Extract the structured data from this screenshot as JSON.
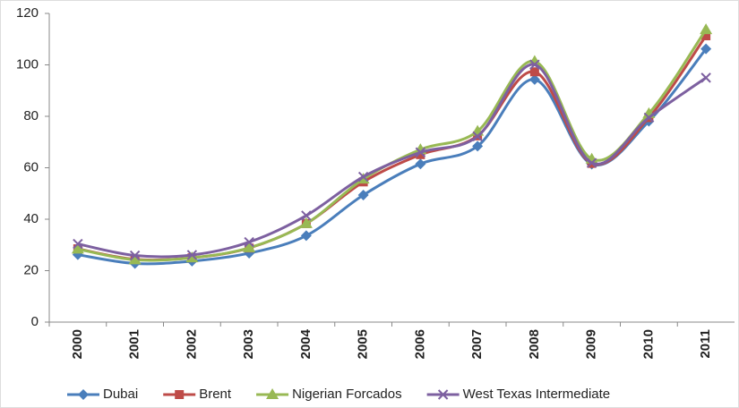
{
  "chart_data": {
    "type": "line",
    "categories": [
      "2000",
      "2001",
      "2002",
      "2003",
      "2004",
      "2005",
      "2006",
      "2007",
      "2008",
      "2009",
      "2010",
      "2011"
    ],
    "series": [
      {
        "name": "Dubai",
        "color": "#4a7ebb",
        "marker": "diamond",
        "values": [
          26.2,
          22.8,
          23.7,
          26.8,
          33.6,
          49.4,
          61.5,
          68.4,
          94.3,
          61.4,
          78.1,
          106.2
        ]
      },
      {
        "name": "Brent",
        "color": "#be4b48",
        "marker": "square",
        "values": [
          28.5,
          24.4,
          25.0,
          28.8,
          38.3,
          54.5,
          65.1,
          72.4,
          97.3,
          61.7,
          79.5,
          111.3
        ]
      },
      {
        "name": "Nigerian Forcados",
        "color": "#98b954",
        "marker": "triangle",
        "values": [
          28.4,
          24.2,
          25.0,
          28.9,
          38.3,
          55.6,
          67.1,
          74.2,
          101.4,
          63.4,
          81.1,
          113.7
        ]
      },
      {
        "name": "West Texas Intermediate",
        "color": "#7d60a0",
        "marker": "x",
        "values": [
          30.4,
          25.9,
          26.1,
          31.1,
          41.4,
          56.5,
          66.0,
          72.2,
          100.1,
          61.9,
          79.5,
          95.0
        ]
      }
    ],
    "ylim": [
      0,
      120
    ],
    "yticks": [
      0,
      20,
      40,
      60,
      80,
      100,
      120
    ],
    "grid": false,
    "smooth": true,
    "legend": "bottom"
  }
}
